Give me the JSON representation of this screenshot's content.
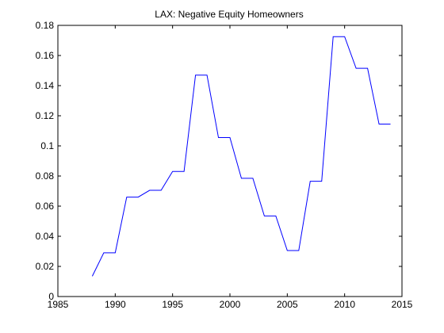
{
  "chart_data": {
    "type": "line",
    "title": "LAX: Negative Equity Homeowners",
    "xlabel": "",
    "ylabel": "",
    "xlim": [
      1985,
      2015
    ],
    "ylim": [
      0,
      0.18
    ],
    "grid": false,
    "legend": "none",
    "x_ticks": [
      "1985",
      "1990",
      "1995",
      "2000",
      "2005",
      "2010",
      "2015"
    ],
    "y_ticks": [
      "0",
      "0.02",
      "0.04",
      "0.06",
      "0.08",
      "0.1",
      "0.12",
      "0.14",
      "0.16",
      "0.18"
    ],
    "line_color": "#0000ff",
    "axis_color": "#000000",
    "series": [
      {
        "x": [
          1988,
          1989,
          1990,
          1991,
          1992,
          1993,
          1994,
          1995,
          1996,
          1997,
          1998,
          1999,
          2000,
          2001,
          2002,
          2003,
          2004,
          2005,
          2006,
          2007,
          2008,
          2009,
          2010,
          2011,
          2012,
          2013,
          2014
        ],
        "y": [
          0.0135,
          0.029,
          0.029,
          0.066,
          0.066,
          0.0705,
          0.0705,
          0.083,
          0.083,
          0.147,
          0.147,
          0.1055,
          0.1055,
          0.0785,
          0.0785,
          0.0535,
          0.0535,
          0.0305,
          0.0305,
          0.0765,
          0.0765,
          0.1725,
          0.1725,
          0.1515,
          0.1515,
          0.1145,
          0.1145
        ]
      }
    ]
  }
}
